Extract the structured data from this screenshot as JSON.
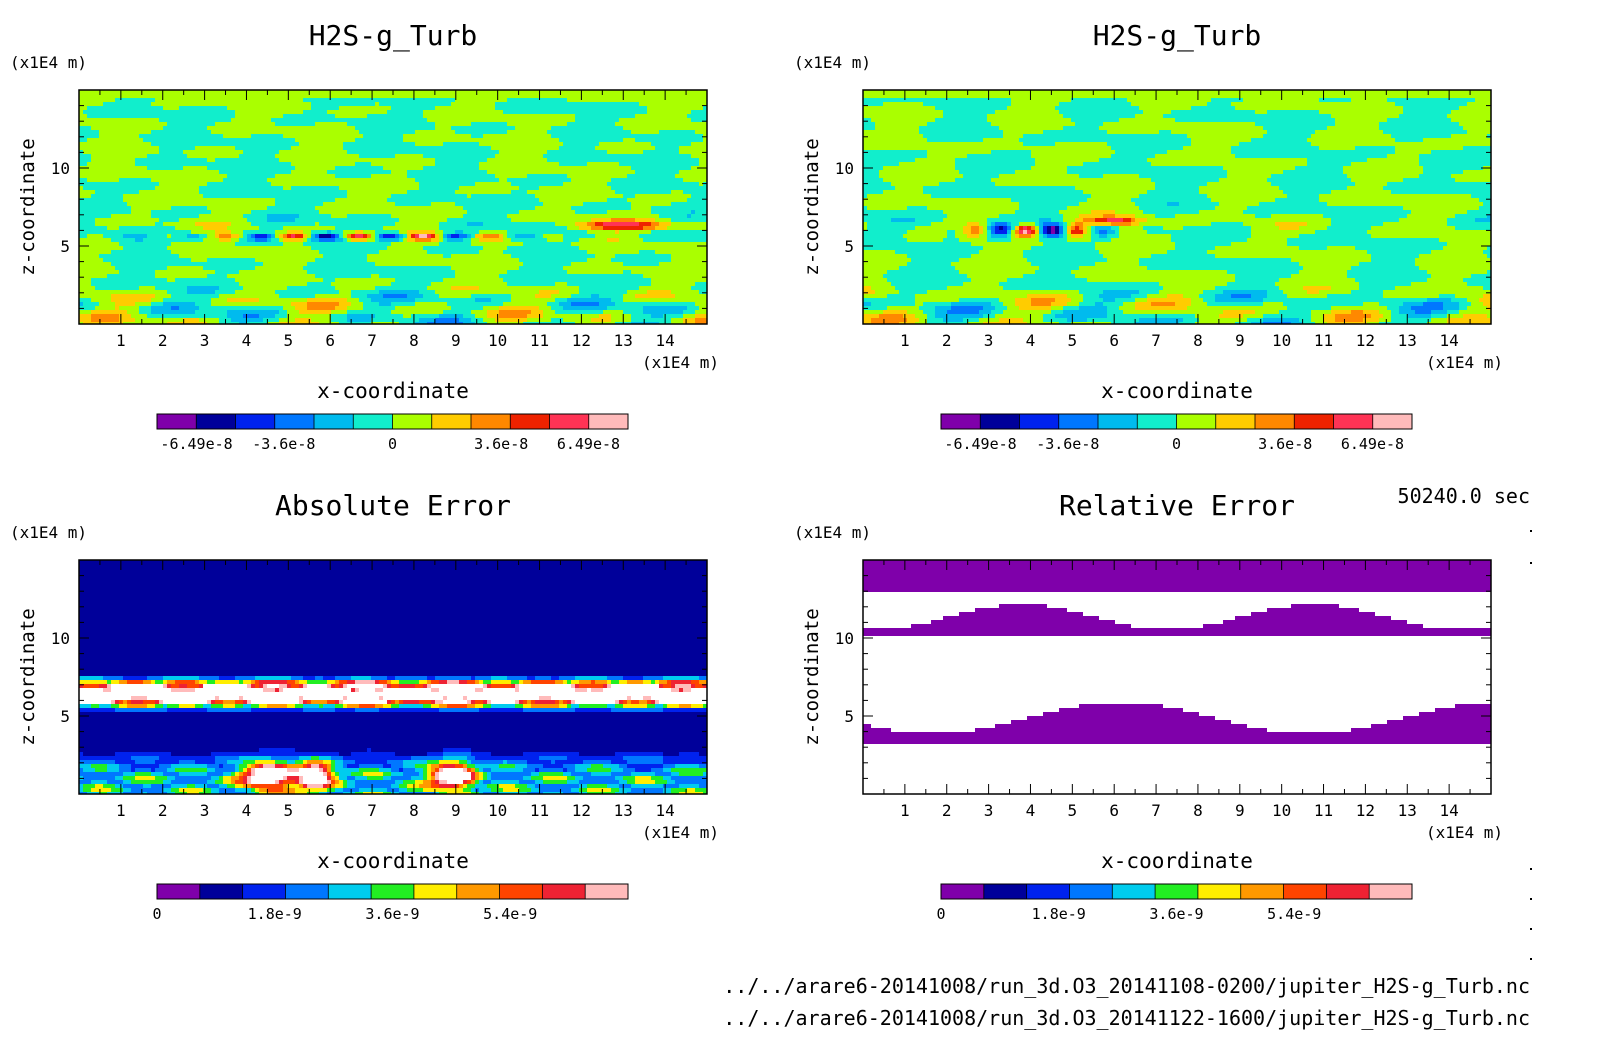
{
  "time_label": "50240.0 sec",
  "file_paths": [
    "../../arare6-20141008/run_3d.O3_20141108-0200/jupiter_H2S-g_Turb.nc",
    "../../arare6-20141008/run_3d.O3_20141122-1600/jupiter_H2S-g_Turb.nc"
  ],
  "chart_data": [
    {
      "type": "heatmap",
      "title": "H2S-g_Turb",
      "xlabel": "x-coordinate",
      "ylabel": "z-coordinate",
      "x_unit": "(x1E4 m)",
      "z_unit": "(x1E4 m)",
      "xlim": [
        0,
        15
      ],
      "zlim": [
        0,
        15
      ],
      "x_ticks": [
        1,
        2,
        3,
        4,
        5,
        6,
        7,
        8,
        9,
        10,
        11,
        12,
        13,
        14
      ],
      "z_ticks": [
        5,
        10
      ],
      "field": "turb_a",
      "colorbar": {
        "levels": 11,
        "colors": [
          "#7f00aa",
          "#00009a",
          "#0022ee",
          "#0077ff",
          "#00bbee",
          "#11eecc",
          "#aaff00",
          "#ffcc00",
          "#ff8800",
          "#ee2200",
          "#ff3355",
          "#ffbbbb"
        ],
        "tick_labels": [
          "-6.49e-8",
          "-3.6e-8",
          "0",
          "3.6e-8",
          "6.49e-8"
        ],
        "tick_values": [
          -6.49e-08,
          -3.6e-08,
          0,
          3.6e-08,
          6.49e-08
        ],
        "range": [
          -7.8e-08,
          7.8e-08
        ]
      }
    },
    {
      "type": "heatmap",
      "title": "H2S-g_Turb",
      "xlabel": "x-coordinate",
      "ylabel": "z-coordinate",
      "x_unit": "(x1E4 m)",
      "z_unit": "(x1E4 m)",
      "xlim": [
        0,
        15
      ],
      "zlim": [
        0,
        15
      ],
      "x_ticks": [
        1,
        2,
        3,
        4,
        5,
        6,
        7,
        8,
        9,
        10,
        11,
        12,
        13,
        14
      ],
      "z_ticks": [
        5,
        10
      ],
      "field": "turb_b",
      "colorbar": {
        "levels": 11,
        "colors": [
          "#7f00aa",
          "#00009a",
          "#0022ee",
          "#0077ff",
          "#00bbee",
          "#11eecc",
          "#aaff00",
          "#ffcc00",
          "#ff8800",
          "#ee2200",
          "#ff3355",
          "#ffbbbb"
        ],
        "tick_labels": [
          "-6.49e-8",
          "-3.6e-8",
          "0",
          "3.6e-8",
          "6.49e-8"
        ],
        "tick_values": [
          -6.49e-08,
          -3.6e-08,
          0,
          3.6e-08,
          6.49e-08
        ],
        "range": [
          -7.8e-08,
          7.8e-08
        ]
      }
    },
    {
      "type": "heatmap",
      "title": "Absolute Error",
      "xlabel": "x-coordinate",
      "ylabel": "z-coordinate",
      "x_unit": "(x1E4 m)",
      "z_unit": "(x1E4 m)",
      "xlim": [
        0,
        15
      ],
      "zlim": [
        0,
        15
      ],
      "x_ticks": [
        1,
        2,
        3,
        4,
        5,
        6,
        7,
        8,
        9,
        10,
        11,
        12,
        13,
        14
      ],
      "z_ticks": [
        5,
        10
      ],
      "field": "abs_err",
      "colorbar": {
        "levels": 11,
        "colors": [
          "#7f00aa",
          "#00009a",
          "#0022ee",
          "#0077ff",
          "#00ccee",
          "#22ee22",
          "#ffee00",
          "#ff9900",
          "#ff4400",
          "#ee2233",
          "#ffbbbb"
        ],
        "tick_labels": [
          "0",
          "1.8e-9",
          "3.6e-9",
          "5.4e-9"
        ],
        "tick_values": [
          0,
          1.8e-09,
          3.6e-09,
          5.4e-09
        ],
        "range": [
          0,
          7.2e-09
        ]
      }
    },
    {
      "type": "heatmap",
      "title": "Relative Error",
      "xlabel": "x-coordinate",
      "ylabel": "z-coordinate",
      "x_unit": "(x1E4 m)",
      "z_unit": "(x1E4 m)",
      "xlim": [
        0,
        15
      ],
      "zlim": [
        0,
        15
      ],
      "x_ticks": [
        1,
        2,
        3,
        4,
        5,
        6,
        7,
        8,
        9,
        10,
        11,
        12,
        13,
        14
      ],
      "z_ticks": [
        5,
        10
      ],
      "field": "rel_err",
      "colorbar": {
        "levels": 11,
        "colors": [
          "#7f00aa",
          "#00009a",
          "#0022ee",
          "#0077ff",
          "#00ccee",
          "#22ee22",
          "#ffee00",
          "#ff9900",
          "#ff4400",
          "#ee2233",
          "#ffbbbb"
        ],
        "tick_labels": [
          "0",
          "1.8e-9",
          "3.6e-9",
          "5.4e-9"
        ],
        "tick_values": [
          0,
          1.8e-09,
          3.6e-09,
          5.4e-09
        ],
        "range": [
          0,
          7.2e-09
        ]
      }
    }
  ]
}
